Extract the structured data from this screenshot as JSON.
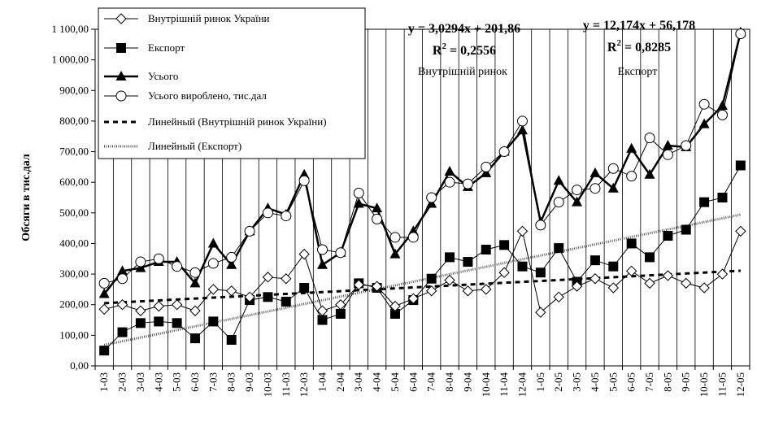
{
  "chart_data": {
    "type": "line",
    "ylabel": "Обсяги в тис.дал",
    "xlabel": "",
    "ylim": [
      0,
      1100
    ],
    "ytick_step": 100,
    "ytick_labels": [
      "0,00",
      "100,00",
      "200,00",
      "300,00",
      "400,00",
      "500,00",
      "600,00",
      "700,00",
      "800,00",
      "900,00",
      "1 000,00",
      "1 100,00"
    ],
    "grid": "vertical",
    "legend_position": "top-left",
    "categories": [
      "1-03",
      "2-03",
      "3-03",
      "4-03",
      "5-03",
      "6-03",
      "7-03",
      "8-03",
      "9-03",
      "10-03",
      "11-03",
      "12-03",
      "1-04",
      "2-04",
      "3-04",
      "4-04",
      "5-04",
      "6-04",
      "7-04",
      "8-04",
      "9-04",
      "10-04",
      "11-04",
      "12-04",
      "1-05",
      "2-05",
      "3-05",
      "4-05",
      "5-05",
      "6-05",
      "7-05",
      "8-05",
      "9-05",
      "10-05",
      "11-05",
      "12-05"
    ],
    "series": [
      {
        "name": "Внутрішній ринок України",
        "marker": "diamond",
        "color": "#000000",
        "values": [
          185,
          200,
          180,
          195,
          200,
          180,
          250,
          245,
          225,
          290,
          285,
          365,
          180,
          200,
          265,
          260,
          195,
          220,
          245,
          280,
          245,
          250,
          305,
          440,
          175,
          225,
          260,
          285,
          255,
          310,
          270,
          295,
          270,
          255,
          300,
          440
        ]
      },
      {
        "name": "Експорт",
        "marker": "square",
        "color": "#000000",
        "values": [
          50,
          110,
          140,
          145,
          140,
          90,
          145,
          85,
          215,
          225,
          210,
          255,
          150,
          170,
          270,
          255,
          170,
          215,
          285,
          355,
          340,
          380,
          395,
          325,
          305,
          385,
          275,
          345,
          325,
          400,
          355,
          425,
          445,
          535,
          550,
          655
        ]
      },
      {
        "name": "Усього",
        "marker": "triangle",
        "color": "#000000",
        "values": [
          235,
          310,
          320,
          340,
          340,
          270,
          400,
          330,
          440,
          515,
          495,
          625,
          330,
          370,
          530,
          515,
          365,
          440,
          530,
          635,
          585,
          630,
          700,
          770,
          470,
          605,
          535,
          630,
          580,
          710,
          625,
          720,
          715,
          790,
          850,
          1090
        ]
      },
      {
        "name": "Усього вироблено, тис.дал",
        "marker": "circle",
        "color": "#000000",
        "values": [
          270,
          285,
          340,
          350,
          325,
          305,
          335,
          355,
          440,
          500,
          490,
          605,
          380,
          370,
          565,
          480,
          420,
          420,
          550,
          600,
          595,
          650,
          700,
          800,
          460,
          535,
          575,
          580,
          645,
          620,
          745,
          690,
          720,
          855,
          820,
          1085
        ]
      }
    ],
    "trendlines": [
      {
        "name": "Линейный (Внутрішній ринок України)",
        "style": "dashed",
        "slope": 3.0294,
        "intercept": 201.86
      },
      {
        "name": "Линейный (Експорт)",
        "style": "dotted",
        "slope": 12.174,
        "intercept": 56.178
      }
    ],
    "annotations": [
      {
        "equation": "y = 3,0294x + 201,86",
        "r2_prefix": "R",
        "r2_sup": "2",
        "r2_value": " = 0,2556",
        "caption": "Внутрішній ринок"
      },
      {
        "equation": "y = 12,174x + 56,178",
        "r2_prefix": "R",
        "r2_sup": "2",
        "r2_value": " = 0,8285",
        "caption": "Експорт"
      }
    ]
  }
}
